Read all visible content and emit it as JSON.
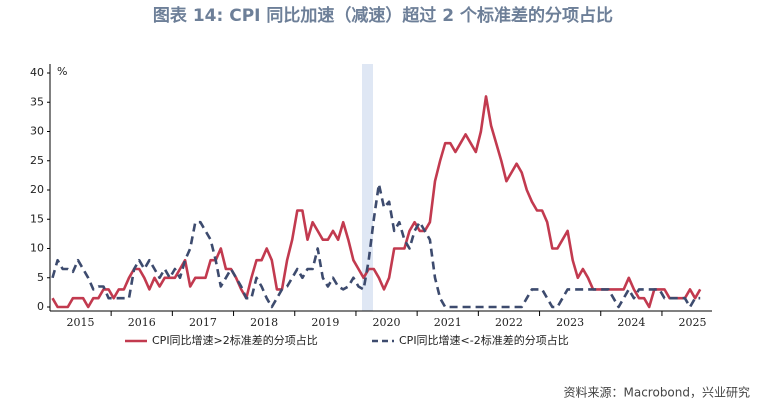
{
  "chart_data": {
    "type": "line",
    "title": "图表 14: CPI 同比加速（减速）超过 2 个标准差的分项占比",
    "y_unit": "%",
    "source": "资料来源：Macrobond，兴业研究",
    "categories": [
      null,
      null,
      null,
      null,
      null,
      null,
      "2015",
      null,
      null,
      null,
      null,
      null,
      null,
      null,
      null,
      null,
      null,
      null,
      "2016",
      null,
      null,
      null,
      null,
      null,
      null,
      null,
      null,
      null,
      null,
      null,
      "2017",
      null,
      null,
      null,
      null,
      null,
      null,
      null,
      null,
      null,
      null,
      null,
      "2018",
      null,
      null,
      null,
      null,
      null,
      null,
      null,
      null,
      null,
      null,
      null,
      "2019",
      null,
      null,
      null,
      null,
      null,
      null,
      null,
      null,
      null,
      null,
      null,
      "2020",
      null,
      null,
      null,
      null,
      null,
      null,
      null,
      null,
      null,
      null,
      null,
      "2021",
      null,
      null,
      null,
      null,
      null,
      null,
      null,
      null,
      null,
      null,
      null,
      "2022",
      null,
      null,
      null,
      null,
      null,
      null,
      null,
      null,
      null,
      null,
      null,
      "2023",
      null,
      null,
      null,
      null,
      null,
      null,
      null,
      null,
      null,
      null,
      null,
      "2024",
      null,
      null,
      null,
      null,
      null,
      null,
      null,
      null,
      null,
      null,
      null,
      "2025",
      null
    ],
    "series": [
      {
        "name": "CPI同比增速>2标准差的分项占比",
        "color": "#c23a4f",
        "dash": false,
        "values": [
          1.5,
          0,
          0,
          0,
          1.5,
          1.5,
          1.5,
          0,
          1.5,
          1.5,
          3,
          3,
          1.5,
          3,
          3,
          5,
          6.5,
          6.5,
          5,
          3,
          5,
          3.5,
          5,
          5,
          5,
          6.5,
          8,
          3.5,
          5,
          5,
          5,
          8,
          8,
          10,
          6.5,
          6.5,
          5,
          3,
          1.5,
          5,
          8,
          8,
          10,
          8,
          3,
          3,
          8,
          11.5,
          16.5,
          16.5,
          11.5,
          14.5,
          13,
          11.5,
          11.5,
          13,
          11.5,
          14.5,
          11.5,
          8,
          6.5,
          5,
          6.5,
          6.5,
          5,
          3,
          5,
          10,
          10,
          10,
          13,
          14.5,
          13,
          13,
          14.5,
          21.5,
          25,
          28,
          28,
          26.5,
          28,
          29.5,
          28,
          26.5,
          30,
          36,
          31,
          28,
          25,
          21.5,
          23,
          24.5,
          23,
          20,
          18,
          16.5,
          16.5,
          14.5,
          10,
          10,
          11.5,
          13,
          8,
          5,
          6.5,
          5,
          3,
          3,
          3,
          3,
          3,
          3,
          3,
          5,
          3,
          1.5,
          1.5,
          0,
          3,
          3,
          3,
          1.5,
          1.5,
          1.5,
          1.5,
          3,
          1.5,
          3
        ]
      },
      {
        "name": "CPI同比增速<-2标准差的分项占比",
        "color": "#3d4b6e",
        "dash": true,
        "values": [
          5,
          8,
          6.5,
          6.5,
          6,
          8,
          6.5,
          5,
          3,
          3.5,
          3.5,
          1.5,
          1.5,
          1.5,
          1.5,
          1.5,
          6.5,
          8,
          6.5,
          8,
          6.5,
          5,
          6.5,
          5,
          6.5,
          5,
          8,
          10,
          14.5,
          14.5,
          13,
          11.5,
          8,
          3.5,
          5,
          6.5,
          5,
          3.5,
          1.5,
          1.5,
          5,
          3.5,
          1.5,
          0,
          1.5,
          3,
          3.5,
          5,
          6.5,
          5,
          6.5,
          6.5,
          10,
          5,
          3.5,
          5,
          3.5,
          3,
          3.5,
          5,
          3.5,
          3,
          8,
          15,
          21,
          17,
          18,
          13,
          14.5,
          11.5,
          10,
          13,
          14.5,
          13,
          11.5,
          5,
          1.5,
          0,
          0,
          0,
          0,
          0,
          0,
          0,
          0,
          0,
          0,
          0,
          0,
          0,
          0,
          0,
          0,
          1.5,
          3,
          3,
          3,
          1.5,
          0,
          0,
          1.5,
          3,
          3,
          3,
          3,
          3,
          3,
          3,
          3,
          3,
          1.5,
          0,
          1.5,
          3,
          1.5,
          3,
          3,
          3,
          3,
          3,
          1.5,
          1.5,
          1.5,
          1.5,
          1.5,
          0,
          1.5,
          1.5
        ]
      }
    ],
    "ylim": [
      0,
      40
    ],
    "yticks": [
      0,
      5,
      10,
      15,
      20,
      25,
      30,
      35,
      40
    ],
    "grid": false
  }
}
